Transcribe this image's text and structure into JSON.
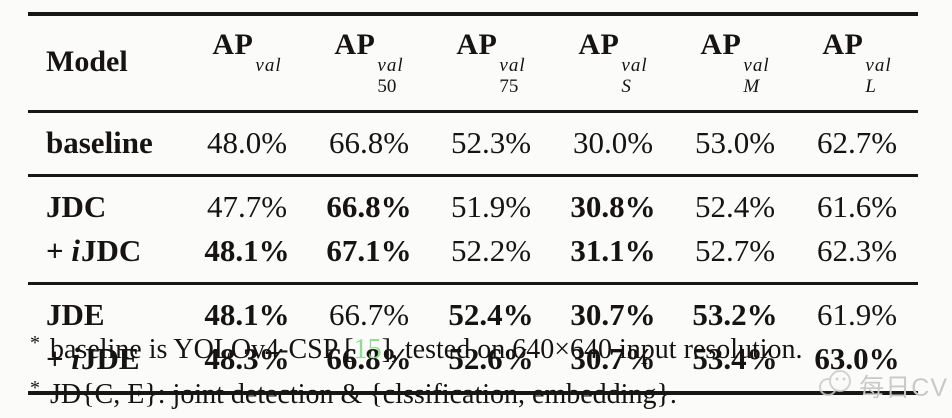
{
  "table": {
    "columns": [
      {
        "label": "Model"
      },
      {
        "base": "AP",
        "sup": "val",
        "sub": "",
        "sub_italic": false
      },
      {
        "base": "AP",
        "sup": "val",
        "sub": "50",
        "sub_italic": false
      },
      {
        "base": "AP",
        "sup": "val",
        "sub": "75",
        "sub_italic": false
      },
      {
        "base": "AP",
        "sup": "val",
        "sub": "S",
        "sub_italic": true
      },
      {
        "base": "AP",
        "sup": "val",
        "sub": "M",
        "sub_italic": true
      },
      {
        "base": "AP",
        "sup": "val",
        "sub": "L",
        "sub_italic": true
      }
    ],
    "groups": [
      {
        "rows": [
          {
            "model": {
              "prefix": "",
              "it": "",
              "name": "baseline"
            },
            "cells": [
              {
                "v": "48.0%",
                "b": false
              },
              {
                "v": "66.8%",
                "b": false
              },
              {
                "v": "52.3%",
                "b": false
              },
              {
                "v": "30.0%",
                "b": false
              },
              {
                "v": "53.0%",
                "b": false
              },
              {
                "v": "62.7%",
                "b": false
              }
            ]
          }
        ]
      },
      {
        "rows": [
          {
            "model": {
              "prefix": "",
              "it": "",
              "name": "JDC"
            },
            "cells": [
              {
                "v": "47.7%",
                "b": false
              },
              {
                "v": "66.8%",
                "b": true
              },
              {
                "v": "51.9%",
                "b": false
              },
              {
                "v": "30.8%",
                "b": true
              },
              {
                "v": "52.4%",
                "b": false
              },
              {
                "v": "61.6%",
                "b": false
              }
            ]
          },
          {
            "model": {
              "prefix": "+",
              "it": "i",
              "name": "JDC"
            },
            "cells": [
              {
                "v": "48.1%",
                "b": true
              },
              {
                "v": "67.1%",
                "b": true
              },
              {
                "v": "52.2%",
                "b": false
              },
              {
                "v": "31.1%",
                "b": true
              },
              {
                "v": "52.7%",
                "b": false
              },
              {
                "v": "62.3%",
                "b": false
              }
            ]
          }
        ]
      },
      {
        "rows": [
          {
            "model": {
              "prefix": "",
              "it": "",
              "name": "JDE"
            },
            "cells": [
              {
                "v": "48.1%",
                "b": true
              },
              {
                "v": "66.7%",
                "b": false
              },
              {
                "v": "52.4%",
                "b": true
              },
              {
                "v": "30.7%",
                "b": true
              },
              {
                "v": "53.2%",
                "b": true
              },
              {
                "v": "61.9%",
                "b": false
              }
            ]
          },
          {
            "model": {
              "prefix": "+",
              "it": "i",
              "name": "JDE"
            },
            "cells": [
              {
                "v": "48.3%",
                "b": true
              },
              {
                "v": "66.8%",
                "b": true
              },
              {
                "v": "52.6%",
                "b": true
              },
              {
                "v": "30.7%",
                "b": true
              },
              {
                "v": "53.4%",
                "b": true
              },
              {
                "v": "63.0%",
                "b": true
              }
            ]
          }
        ]
      }
    ]
  },
  "footnotes": [
    {
      "marker": "*",
      "parts": [
        {
          "t": "baseline is YOLOv4-CSP ["
        },
        {
          "t": "15",
          "green": true
        },
        {
          "t": "], tested on 640×640 input resolution."
        }
      ]
    },
    {
      "marker": "*",
      "parts": [
        {
          "t": "JD{C, E}: joint detection & {clssification, embedding}."
        }
      ]
    }
  ],
  "watermark": {
    "text": "每日CV"
  },
  "colors": {
    "ref_green": "#8fdd8f",
    "watermark_gray": "#c9c9c9",
    "text": "#151413",
    "rule": "#171717"
  }
}
